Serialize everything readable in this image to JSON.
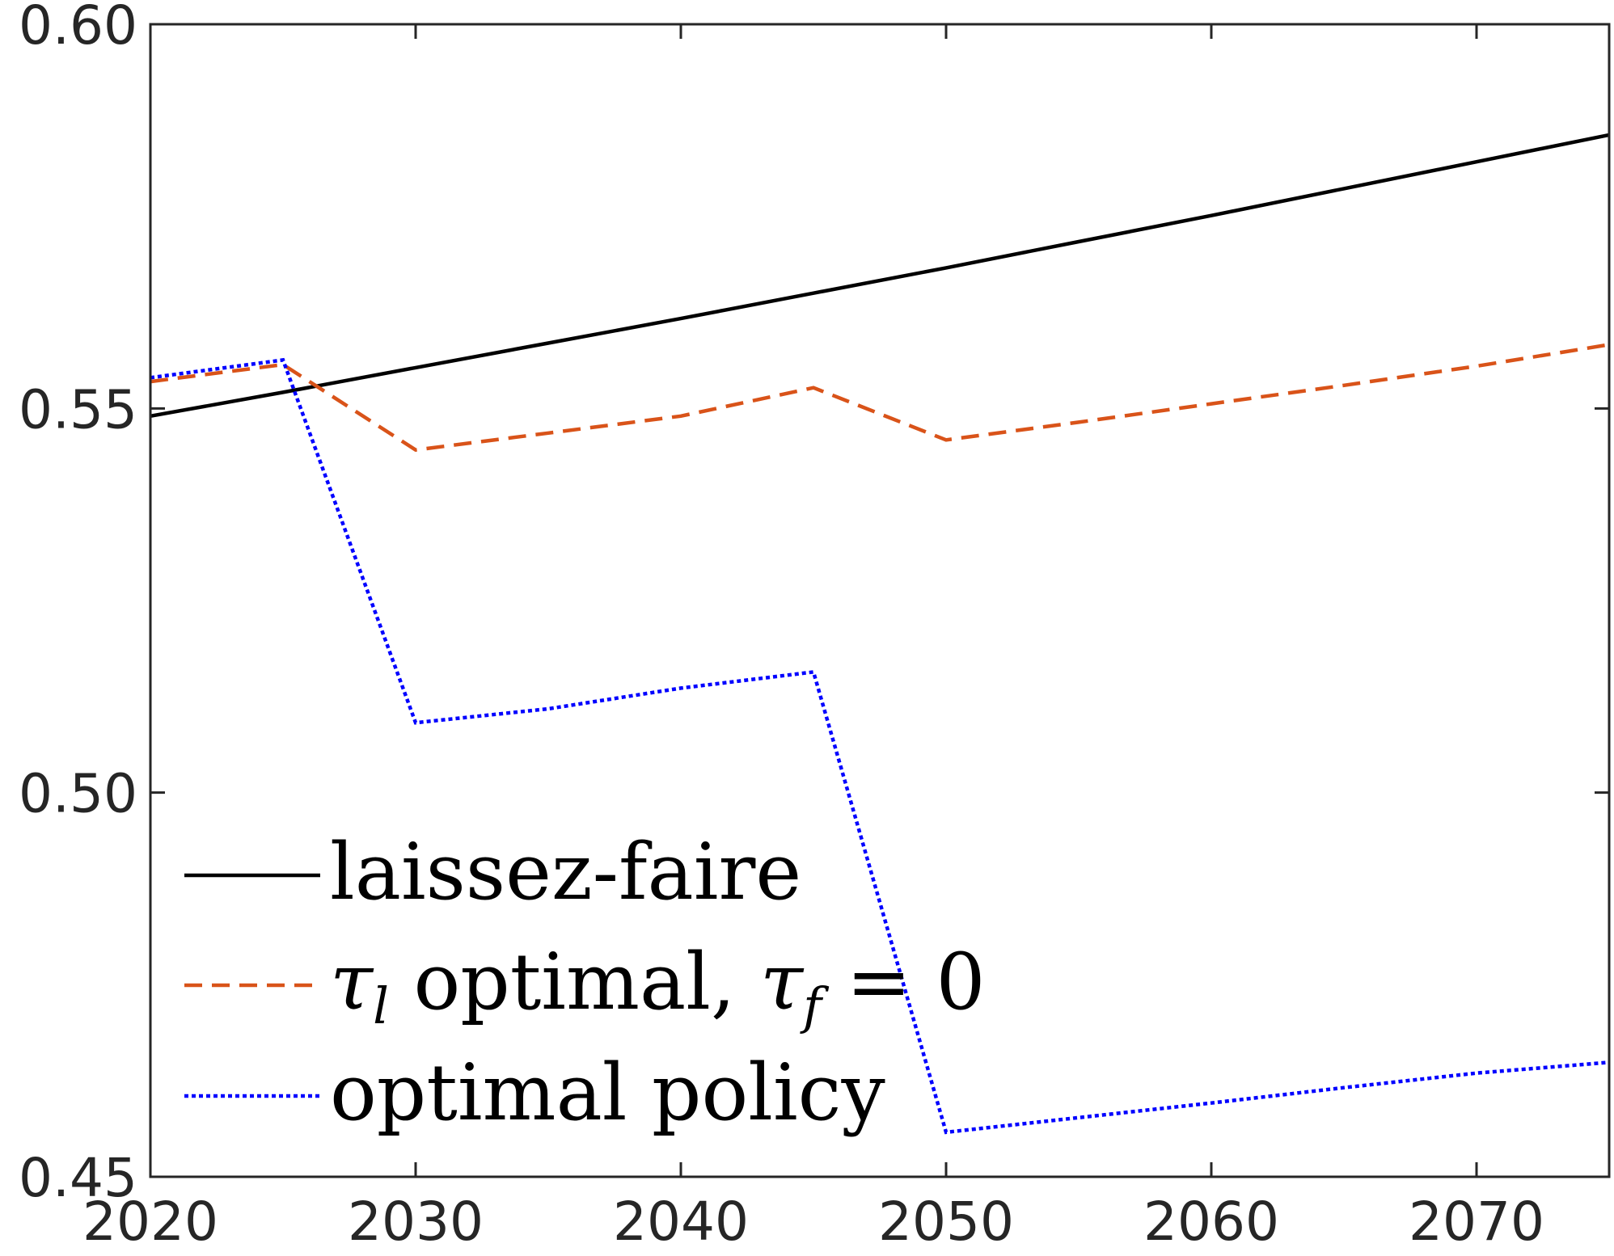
{
  "chart_data": {
    "type": "line",
    "title": "",
    "xlabel": "",
    "ylabel": "",
    "xlim": [
      2020,
      2075
    ],
    "ylim": [
      0.45,
      0.6
    ],
    "xticks": [
      2020,
      2030,
      2040,
      2050,
      2060,
      2070
    ],
    "xtick_labels": [
      "2020",
      "2030",
      "2040",
      "2050",
      "2060",
      "2070"
    ],
    "yticks": [
      0.45,
      0.5,
      0.55,
      0.6
    ],
    "ytick_labels": [
      "0.45",
      "0.50",
      "0.55",
      "0.60"
    ],
    "grid": false,
    "legend_position": "bottom-left",
    "series": [
      {
        "name": "laissez-faire",
        "color": "#000000",
        "style": "solid",
        "x": [
          2020,
          2025,
          2030,
          2035,
          2040,
          2045,
          2050,
          2055,
          2060,
          2065,
          2070,
          2075
        ],
        "y": [
          0.549,
          0.5521,
          0.5553,
          0.5585,
          0.5617,
          0.565,
          0.5683,
          0.5717,
          0.5751,
          0.5786,
          0.5821,
          0.5856
        ]
      },
      {
        "name": "τl optimal, τf = 0",
        "color": "#D95319",
        "style": "dashed",
        "x": [
          2020,
          2025,
          2030,
          2035,
          2040,
          2045,
          2050,
          2055,
          2060,
          2065,
          2070,
          2075
        ],
        "y": [
          0.5535,
          0.5557,
          0.5446,
          0.5468,
          0.549,
          0.5527,
          0.5459,
          0.5482,
          0.5506,
          0.553,
          0.5555,
          0.5583
        ]
      },
      {
        "name": "optimal policy",
        "color": "#0000FF",
        "style": "dotted",
        "x": [
          2020,
          2025,
          2030,
          2035,
          2040,
          2045,
          2050,
          2055,
          2060,
          2065,
          2070,
          2075
        ],
        "y": [
          0.554,
          0.5563,
          0.5091,
          0.5109,
          0.5136,
          0.5157,
          0.4558,
          0.4577,
          0.4596,
          0.4616,
          0.4635,
          0.4649
        ]
      }
    ]
  },
  "legend": {
    "entries": [
      {
        "label": "laissez-faire"
      },
      {
        "label_parts": [
          "τ",
          "l",
          " optimal, ",
          "τ",
          "f",
          " = 0"
        ]
      },
      {
        "label": "optimal policy"
      }
    ]
  }
}
